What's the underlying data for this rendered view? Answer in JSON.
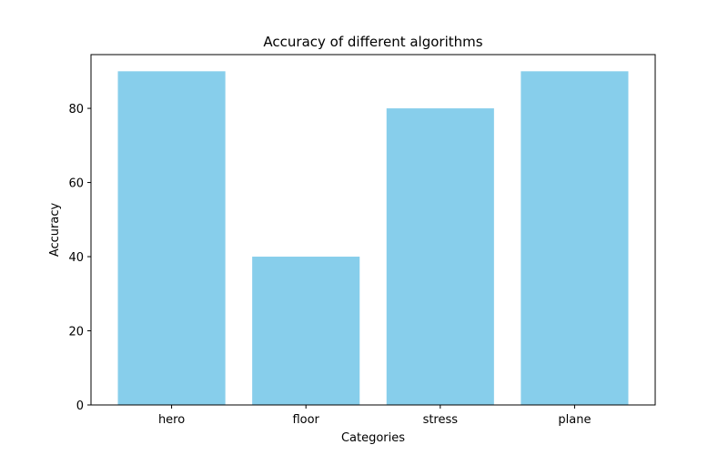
{
  "chart_data": {
    "type": "bar",
    "title": "Accuracy of different algorithms",
    "xlabel": "Categories",
    "ylabel": "Accuracy",
    "categories": [
      "hero",
      "floor",
      "stress",
      "plane"
    ],
    "values": [
      90,
      40,
      80,
      90
    ],
    "ylim": [
      0,
      94.5
    ],
    "yticks": [
      0,
      20,
      40,
      60,
      80
    ],
    "grid": false,
    "legend": "none",
    "bar_color": "#87ceeb"
  }
}
